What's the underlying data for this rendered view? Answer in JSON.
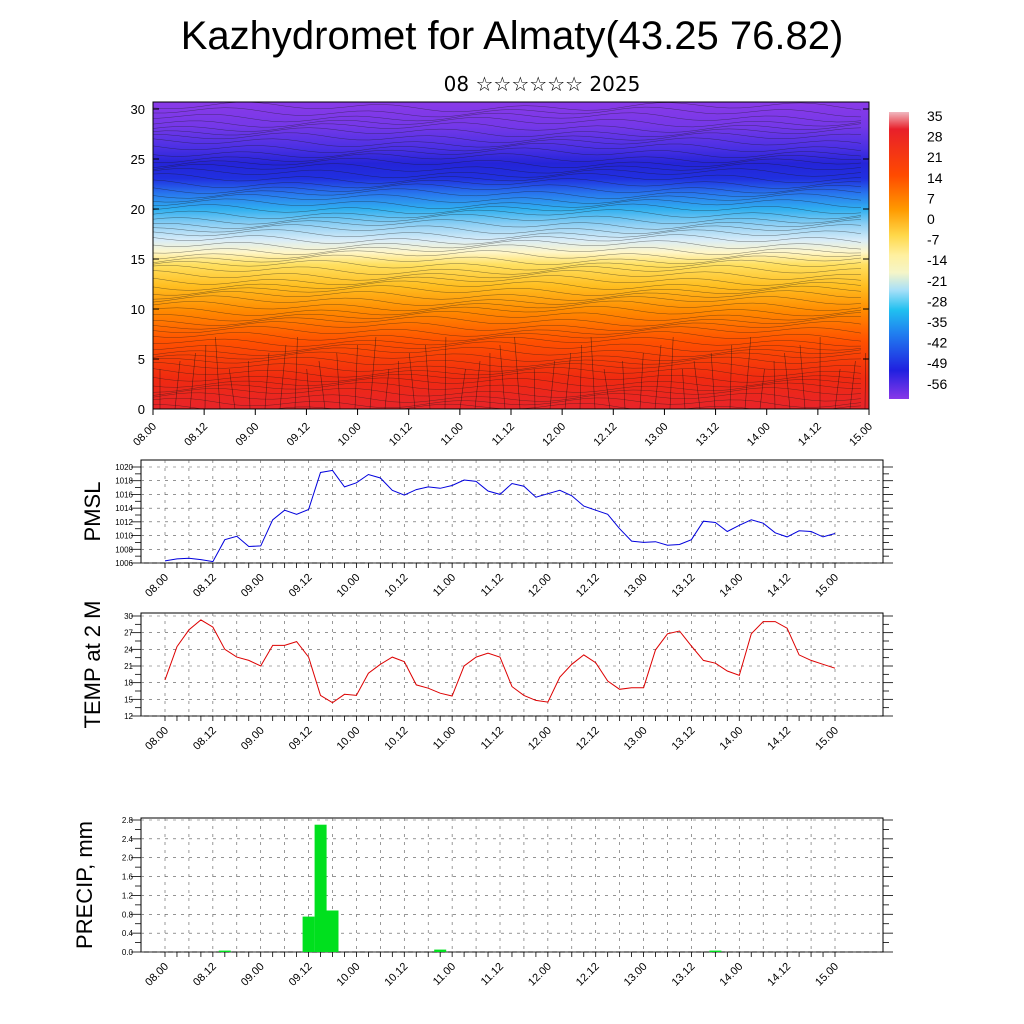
{
  "title": "Kazhydromet for Almaty(43.25 76.82)",
  "subtitle": "08 ☆☆☆☆☆☆ 2025",
  "time_labels": [
    "08.00",
    "08.12",
    "09.00",
    "09.12",
    "10.00",
    "10.12",
    "11.00",
    "11.12",
    "12.00",
    "12.12",
    "13.00",
    "13.12",
    "14.00",
    "14.12",
    "15.00"
  ],
  "chart_data": [
    {
      "type": "heatmap",
      "name": "cross-section",
      "ylim": [
        0,
        30
      ],
      "yticks": [
        "0",
        "5",
        "10",
        "15",
        "20",
        "25",
        "30"
      ],
      "xlabels": [
        "08.00",
        "08.12",
        "09.00",
        "09.12",
        "10.00",
        "10.12",
        "11.00",
        "11.12",
        "12.00",
        "12.12",
        "13.00",
        "13.12",
        "14.00",
        "14.12",
        "15.00"
      ],
      "colorbar": {
        "labels": [
          "35",
          "28",
          "21",
          "14",
          "7",
          "0",
          "-7",
          "-14",
          "-21",
          "-28",
          "-35",
          "-42",
          "-49",
          "-56"
        ],
        "stops": [
          {
            "v": 35,
            "color": "#f0b8c0"
          },
          {
            "v": 30,
            "color": "#e8202a"
          },
          {
            "v": 14,
            "color": "#ff4a00"
          },
          {
            "v": 5,
            "color": "#ff9a00"
          },
          {
            "v": -7,
            "color": "#ffe070"
          },
          {
            "v": -14,
            "color": "#f5f5c8"
          },
          {
            "v": -21,
            "color": "#a8e0f8"
          },
          {
            "v": -28,
            "color": "#20c0f0"
          },
          {
            "v": -35,
            "color": "#2080f0"
          },
          {
            "v": -49,
            "color": "#2020e0"
          },
          {
            "v": -58,
            "color": "#8838e8"
          }
        ]
      }
    },
    {
      "type": "line",
      "name": "PMSL",
      "ylabel": "PMSL",
      "ylim": [
        1006,
        1020
      ],
      "yticks": [
        "1006",
        "1008",
        "1010",
        "1012",
        "1014",
        "1016",
        "1018",
        "1020"
      ],
      "color": "#0000dd",
      "values": [
        1006.3,
        1006.6,
        1006.7,
        1006.5,
        1006.2,
        1009.4,
        1009.9,
        1008.4,
        1008.5,
        1012.3,
        1013.7,
        1013.1,
        1013.8,
        1019.2,
        1019.5,
        1017.1,
        1017.7,
        1018.9,
        1018.4,
        1016.6,
        1015.9,
        1016.7,
        1017.1,
        1016.9,
        1017.3,
        1018.1,
        1017.9,
        1016.5,
        1016.0,
        1017.6,
        1017.2,
        1015.6,
        1016.1,
        1016.6,
        1015.8,
        1014.3,
        1013.7,
        1013.1,
        1011.0,
        1009.2,
        1009.0,
        1009.1,
        1008.6,
        1008.7,
        1009.4,
        1012.1,
        1011.9,
        1010.6,
        1011.5,
        1012.3,
        1011.8,
        1010.4,
        1009.8,
        1010.7,
        1010.6,
        1009.8,
        1010.3
      ]
    },
    {
      "type": "line",
      "name": "TEMP at 2 M",
      "ylabel": "TEMP at 2 M",
      "ylim": [
        12,
        30
      ],
      "yticks": [
        "12",
        "15",
        "18",
        "21",
        "24",
        "27",
        "30"
      ],
      "color": "#dd0000",
      "values": [
        18.5,
        24.5,
        27.5,
        29.3,
        28.0,
        24.0,
        22.6,
        22.0,
        21.0,
        24.7,
        24.7,
        25.4,
        22.6,
        15.7,
        14.4,
        15.9,
        15.7,
        19.7,
        21.3,
        22.6,
        21.8,
        17.6,
        17.0,
        16.1,
        15.6,
        21.0,
        22.6,
        23.3,
        22.6,
        17.3,
        15.7,
        14.8,
        14.5,
        19.0,
        21.3,
        23.0,
        21.6,
        18.3,
        16.8,
        17.1,
        17.1,
        23.9,
        26.8,
        27.3,
        24.6,
        22.0,
        21.5,
        20.1,
        19.3,
        26.8,
        29.0,
        29.0,
        27.8,
        23.0,
        22.0,
        21.3,
        20.6
      ]
    },
    {
      "type": "bar",
      "name": "PRECIP, mm",
      "ylabel": "PRECIP, mm",
      "ylim": [
        0,
        2.8
      ],
      "yticks": [
        "0.0",
        "0.4",
        "0.8",
        "1.2",
        "1.6",
        "2.0",
        "2.4",
        "2.8"
      ],
      "color": "#00e01e",
      "values": [
        0,
        0,
        0,
        0,
        0,
        0.03,
        0,
        0,
        0,
        0,
        0,
        0,
        0.75,
        2.7,
        0.88,
        0,
        0,
        0,
        0,
        0,
        0,
        0,
        0,
        0.05,
        0,
        0,
        0,
        0,
        0,
        0,
        0,
        0,
        0,
        0,
        0,
        0,
        0,
        0,
        0,
        0,
        0,
        0,
        0,
        0,
        0,
        0,
        0.03,
        0,
        0,
        0,
        0,
        0,
        0,
        0,
        0,
        0,
        0
      ]
    }
  ]
}
